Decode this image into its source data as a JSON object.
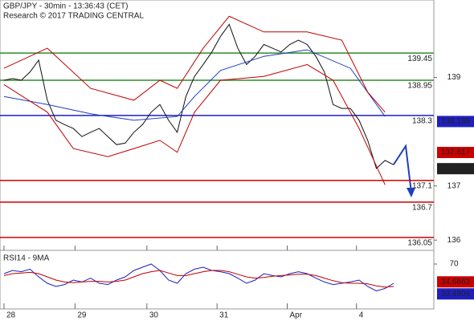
{
  "chart_data": {
    "type": "line",
    "title": "GBP/JPY - 30min - 13:36:43 (CET)",
    "subtitle": "Research © 2017 TRADING CENTRAL",
    "xlim": [
      -0.46,
      49.63
    ],
    "xticks": [
      {
        "value": 0,
        "label": "28"
      },
      {
        "value": 8.2,
        "label": "29"
      },
      {
        "value": 16.5,
        "label": "30"
      },
      {
        "value": 24.6,
        "label": "31"
      },
      {
        "value": 32.7,
        "label": "Apr"
      },
      {
        "value": 40.7,
        "label": "4"
      }
    ],
    "ylim": [
      135.84,
      140.43
    ],
    "yticks": [
      139,
      137,
      136
    ],
    "series": [
      {
        "name": "GBP/JPY",
        "color": "#111111",
        "x": [
          0,
          1,
          2,
          3,
          4,
          5,
          6,
          7,
          8,
          9,
          10,
          11,
          12,
          13,
          14,
          15,
          16,
          17,
          18,
          19,
          20,
          21,
          22,
          23,
          24,
          25,
          26,
          27,
          28,
          29,
          30,
          31,
          32,
          33,
          34,
          35,
          36,
          37,
          38,
          39,
          40,
          41,
          42,
          43,
          44,
          45
        ],
        "values": [
          138.95,
          138.98,
          138.95,
          139.1,
          139.32,
          138.58,
          138.21,
          138.13,
          138.06,
          137.91,
          137.99,
          138.06,
          137.91,
          137.76,
          137.79,
          137.99,
          138.13,
          138.36,
          138.5,
          138.21,
          137.99,
          138.65,
          139.02,
          139.24,
          139.47,
          139.76,
          139.98,
          139.54,
          139.24,
          139.39,
          139.61,
          139.54,
          139.47,
          139.61,
          139.69,
          139.61,
          139.39,
          139.1,
          138.5,
          138.43,
          138.43,
          138.21,
          137.84,
          137.32,
          137.47,
          137.39
        ]
      },
      {
        "name": "MA",
        "color": "#1f3fbf",
        "x": [
          0,
          5,
          10,
          15,
          20,
          22,
          25,
          30,
          35,
          40,
          44
        ],
        "values": [
          138.65,
          138.5,
          138.33,
          138.21,
          138.28,
          138.65,
          139.13,
          139.39,
          139.51,
          139.17,
          138.28
        ]
      },
      {
        "name": "Upper band",
        "color": "#c00000",
        "x": [
          0,
          5,
          10,
          15,
          18,
          20,
          23,
          26,
          30,
          35,
          39,
          42,
          44
        ],
        "values": [
          139.17,
          139.54,
          138.8,
          138.58,
          138.95,
          138.8,
          139.54,
          140.13,
          139.84,
          139.84,
          139.69,
          138.73,
          138.36
        ]
      },
      {
        "name": "Lower band",
        "color": "#c00000",
        "x": [
          0,
          5,
          8,
          12,
          15,
          18,
          20,
          22,
          25,
          30,
          35,
          38,
          41,
          44
        ],
        "values": [
          138.87,
          138.36,
          137.69,
          137.54,
          137.69,
          137.84,
          137.62,
          138.36,
          138.95,
          139.02,
          139.24,
          138.95,
          138.06,
          137.02
        ]
      }
    ],
    "levels": [
      {
        "value": 139.45,
        "color": "#2e8b2e"
      },
      {
        "value": 138.95,
        "color": "#2e8b2e"
      },
      {
        "value": 138.3,
        "color": "#1f1fbf"
      },
      {
        "value": 137.1,
        "color": "#cc0000"
      },
      {
        "value": 136.7,
        "color": "#cc0000"
      },
      {
        "value": 136.05,
        "color": "#cc0000"
      }
    ],
    "price_tags": [
      {
        "value": 138.188,
        "color": "#1f1fbf"
      },
      {
        "value": 137.617,
        "color": "#cc0000"
      },
      {
        "value": 137.318,
        "color": "#222222"
      }
    ],
    "rsi": {
      "title": "RSI14 - 9MA",
      "ylim": [
        0,
        100
      ],
      "yticks": [
        70
      ],
      "series": [
        {
          "name": "RSI14",
          "color": "#1f1fbf",
          "x": [
            0,
            1,
            2,
            3,
            4,
            5,
            6,
            7,
            8,
            9,
            10,
            11,
            12,
            13,
            14,
            15,
            16,
            17,
            18,
            19,
            20,
            21,
            22,
            23,
            24,
            25,
            26,
            27,
            28,
            29,
            30,
            31,
            32,
            33,
            34,
            35,
            36,
            37,
            38,
            39,
            40,
            41,
            42,
            43,
            44,
            45
          ],
          "values": [
            55,
            60,
            58,
            62,
            50,
            40,
            35,
            38,
            45,
            42,
            48,
            40,
            38,
            45,
            50,
            60,
            65,
            70,
            60,
            45,
            40,
            55,
            62,
            65,
            60,
            58,
            55,
            48,
            40,
            45,
            55,
            52,
            50,
            55,
            58,
            55,
            48,
            42,
            38,
            40,
            42,
            45,
            35,
            28,
            32,
            40
          ]
        },
        {
          "name": "9MA",
          "color": "#c00000",
          "x": [
            0,
            1,
            2,
            3,
            4,
            5,
            6,
            7,
            8,
            9,
            10,
            11,
            12,
            13,
            14,
            15,
            16,
            17,
            18,
            19,
            20,
            21,
            22,
            23,
            24,
            25,
            26,
            27,
            28,
            29,
            30,
            31,
            32,
            33,
            34,
            35,
            36,
            37,
            38,
            39,
            40,
            41,
            42,
            43,
            44,
            45
          ],
          "values": [
            52,
            55,
            56,
            57,
            55,
            50,
            45,
            42,
            41,
            42,
            43,
            43,
            42,
            43,
            45,
            50,
            55,
            58,
            60,
            56,
            52,
            52,
            55,
            58,
            60,
            60,
            58,
            54,
            50,
            48,
            49,
            51,
            52,
            53,
            54,
            54,
            52,
            48,
            44,
            41,
            40,
            40,
            39,
            36,
            34,
            35
          ]
        }
      ],
      "tags": [
        {
          "value": 34.6863,
          "color": "#cc0000"
        },
        {
          "value": 33.4804,
          "color": "#1f1fbf"
        }
      ]
    }
  }
}
